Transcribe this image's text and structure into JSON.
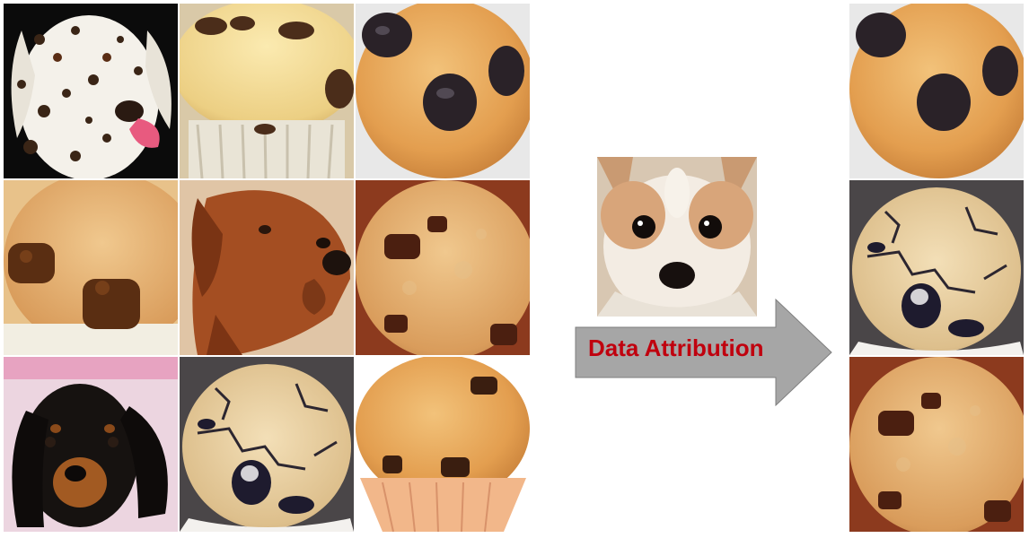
{
  "arrow": {
    "label": "Data Attribution",
    "fill": "#a6a6a6",
    "label_color": "#c0000e"
  },
  "training_grid": {
    "tiles": [
      {
        "subject": "dalmatian-dog"
      },
      {
        "subject": "chocolate-chip-muffin"
      },
      {
        "subject": "blueberry-muffin"
      },
      {
        "subject": "chocolate-chip-muffin-closeup"
      },
      {
        "subject": "rhodesian-ridgeback-dog"
      },
      {
        "subject": "chocolate-chip-muffin"
      },
      {
        "subject": "dachshund-puppy"
      },
      {
        "subject": "cracked-blueberry-muffin"
      },
      {
        "subject": "chocolate-chip-muffin"
      }
    ]
  },
  "query_image": {
    "subject": "chihuahua-dog"
  },
  "attributed_results": {
    "tiles": [
      {
        "subject": "blueberry-muffin"
      },
      {
        "subject": "cracked-blueberry-muffin"
      },
      {
        "subject": "chocolate-chip-muffin"
      }
    ]
  }
}
